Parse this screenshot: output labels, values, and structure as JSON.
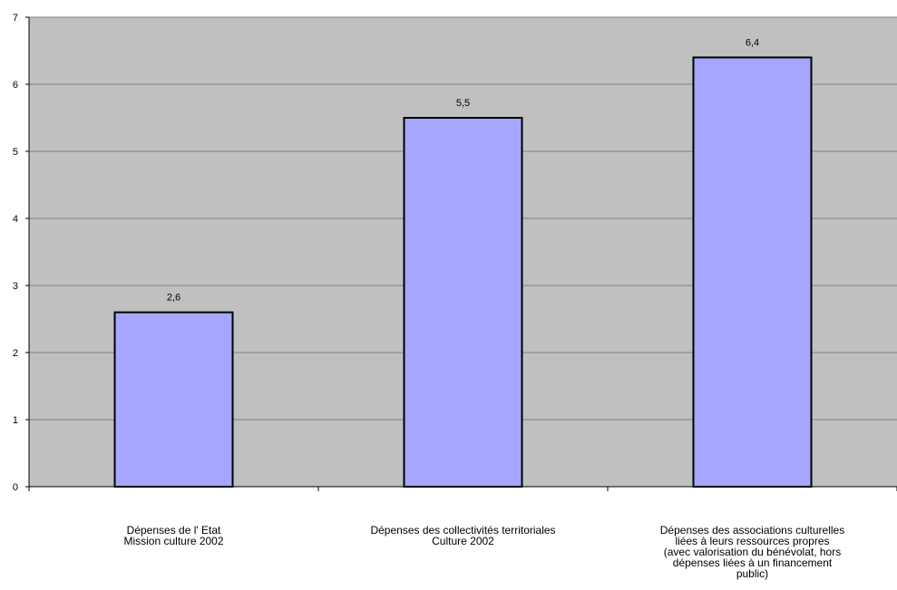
{
  "chart_data": {
    "type": "bar",
    "categories": [
      "Dépenses de l' Etat\nMission culture 2002",
      "Dépenses des collectivités territoriales\nCulture 2002",
      "Dépenses des associations culturelles\nliées à leurs ressources propres\n(avec valorisation du bénévolat, hors\ndépenses liées à un financement\npublic)"
    ],
    "values": [
      2.6,
      5.5,
      6.4
    ],
    "data_labels": [
      "2,6",
      "5,5",
      "6,4"
    ],
    "ylim": [
      0,
      7
    ],
    "yticks": [
      "0",
      "1",
      "2",
      "3",
      "4",
      "5",
      "6",
      "7"
    ],
    "grid": true,
    "legend": "none",
    "colors": {
      "plot_background": "#c0c0c0",
      "bar_fill": "#a6a6ff",
      "bar_stroke": "#000000",
      "gridline": "#808080"
    }
  }
}
